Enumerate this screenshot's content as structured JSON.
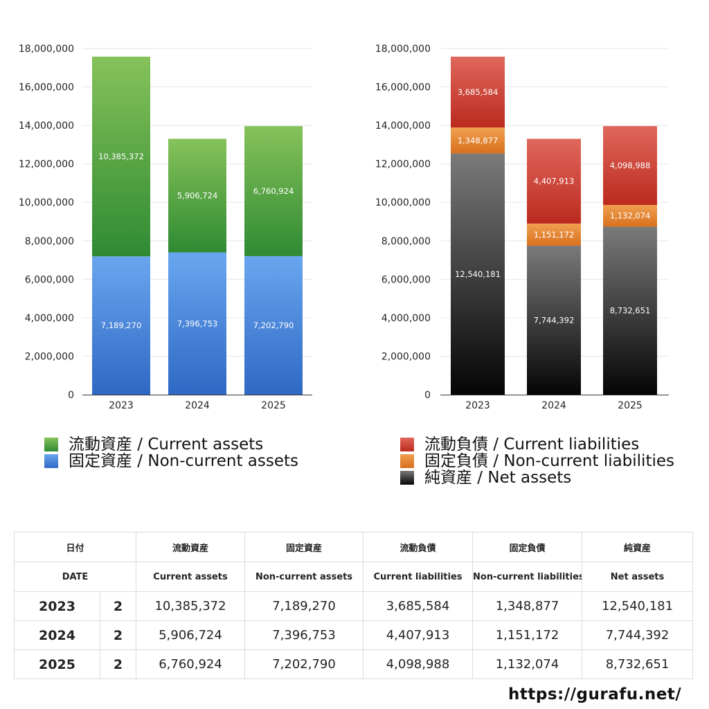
{
  "chart_data": [
    {
      "type": "bar",
      "stacked": true,
      "categories": [
        "2023",
        "2024",
        "2025"
      ],
      "ylim": [
        0,
        18000000
      ],
      "yticks": [
        0,
        2000000,
        4000000,
        6000000,
        8000000,
        10000000,
        12000000,
        14000000,
        16000000,
        18000000
      ],
      "ytick_labels": [
        "0",
        "2,000,000",
        "4,000,000",
        "6,000,000",
        "8,000,000",
        "10,000,000",
        "12,000,000",
        "14,000,000",
        "16,000,000",
        "18,000,000"
      ],
      "grid": true,
      "legend_position": "bottom",
      "series": [
        {
          "name": "固定資産 / Non-current assets",
          "values": [
            7189270,
            7396753,
            7202790
          ],
          "labels": [
            "7,189,270",
            "7,396,753",
            "7,202,790"
          ],
          "color_top": "#6aa6ef",
          "color_bottom": "#2f68c4"
        },
        {
          "name": "流動資産 / Current assets",
          "values": [
            10385372,
            5906724,
            6760924
          ],
          "labels": [
            "10,385,372",
            "5,906,724",
            "6,760,924"
          ],
          "color_top": "#86c25a",
          "color_bottom": "#2f8a33"
        }
      ],
      "legend_order": [
        1,
        0
      ]
    },
    {
      "type": "bar",
      "stacked": true,
      "categories": [
        "2023",
        "2024",
        "2025"
      ],
      "ylim": [
        0,
        18000000
      ],
      "yticks": [
        0,
        2000000,
        4000000,
        6000000,
        8000000,
        10000000,
        12000000,
        14000000,
        16000000,
        18000000
      ],
      "ytick_labels": [
        "0",
        "2,000,000",
        "4,000,000",
        "6,000,000",
        "8,000,000",
        "10,000,000",
        "12,000,000",
        "14,000,000",
        "16,000,000",
        "18,000,000"
      ],
      "grid": true,
      "legend_position": "bottom",
      "series": [
        {
          "name": "純資産 / Net assets",
          "values": [
            12540181,
            7744392,
            8732651
          ],
          "labels": [
            "12,540,181",
            "7,744,392",
            "8,732,651"
          ],
          "color_top": "#7a7a7a",
          "color_bottom": "#050505"
        },
        {
          "name": "固定負債 / Non-current liabilities",
          "values": [
            1348877,
            1151172,
            1132074
          ],
          "labels": [
            "1,348,877",
            "1,151,172",
            "1,132,074"
          ],
          "color_top": "#f0a050",
          "color_bottom": "#d8701e"
        },
        {
          "name": "流動負債 / Current liabilities",
          "values": [
            3685584,
            4407913,
            4098988
          ],
          "labels": [
            "3,685,584",
            "4,407,913",
            "4,098,988"
          ],
          "color_top": "#e0675c",
          "color_bottom": "#bb2a1e"
        }
      ],
      "legend_order": [
        2,
        1,
        0
      ]
    }
  ],
  "table": {
    "header_ja": [
      "日付",
      "",
      "流動資産",
      "固定資産",
      "流動負債",
      "固定負債",
      "純資産"
    ],
    "header_en": [
      "DATE",
      "",
      "Current assets",
      "Non-current assets",
      "Current liabilities",
      "Non-current liabilities",
      "Net assets"
    ],
    "rows": [
      [
        "2023",
        "2",
        "10,385,372",
        "7,189,270",
        "3,685,584",
        "1,348,877",
        "12,540,181"
      ],
      [
        "2024",
        "2",
        "5,906,724",
        "7,396,753",
        "4,407,913",
        "1,151,172",
        "7,744,392"
      ],
      [
        "2025",
        "2",
        "6,760,924",
        "7,202,790",
        "4,098,988",
        "1,132,074",
        "8,732,651"
      ]
    ]
  },
  "footer": {
    "url": "https://gurafu.net/"
  }
}
